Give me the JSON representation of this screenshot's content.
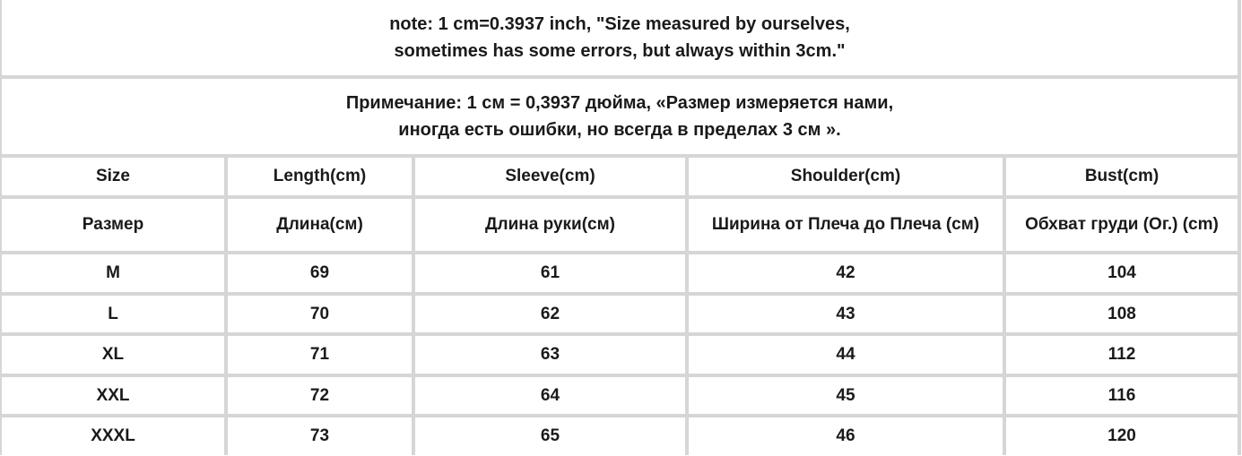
{
  "notes": {
    "english": [
      "note: 1 cm=0.3937 inch, \"Size measured by ourselves,",
      "sometimes has some errors, but always within 3cm.\""
    ],
    "russian": [
      "Примечание: 1 см = 0,3937 дюйма, «Размер измеряется нами,",
      "иногда есть ошибки, но всегда в пределах 3 см »."
    ]
  },
  "table": {
    "headers_en": [
      "Size",
      "Length(cm)",
      "Sleeve(cm)",
      "Shoulder(cm)",
      "Bust(cm)"
    ],
    "headers_ru": [
      "Размер",
      "Длина(см)",
      "Длина руки(см)",
      "Ширина от Плеча до Плеча (см)",
      "Обхват груди  (Ог.) (cm)"
    ],
    "rows": [
      [
        "M",
        "69",
        "61",
        "42",
        "104"
      ],
      [
        "L",
        "70",
        "62",
        "43",
        "108"
      ],
      [
        "XL",
        "71",
        "63",
        "44",
        "112"
      ],
      [
        "XXL",
        "72",
        "64",
        "45",
        "116"
      ],
      [
        "XXXL",
        "73",
        "65",
        "46",
        "120"
      ]
    ]
  }
}
